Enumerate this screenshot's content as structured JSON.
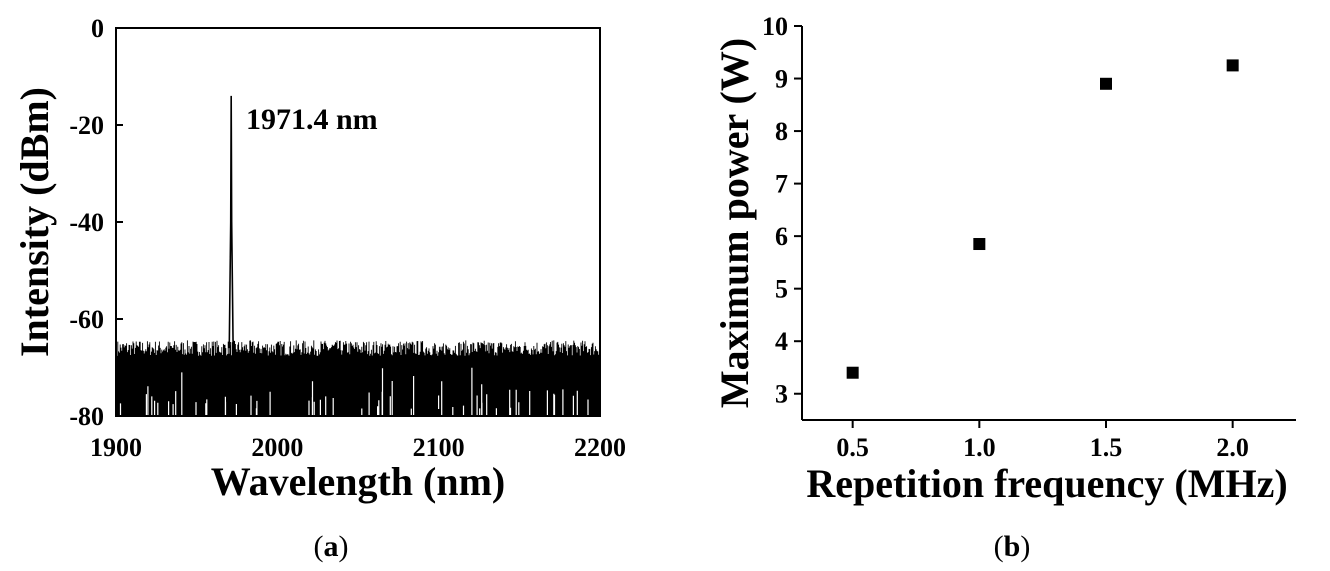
{
  "chart_data": [
    {
      "type": "line",
      "panel": "a",
      "xlabel": "Wavelength (nm)",
      "ylabel": "Intensity (dBm)",
      "xlim": [
        1900,
        2200
      ],
      "ylim": [
        -80,
        0
      ],
      "xticks": [
        1900,
        2000,
        2100,
        2200
      ],
      "yticks": [
        0,
        -20,
        -40,
        -60,
        -80
      ],
      "peak": {
        "x": 1971.4,
        "y": -14
      },
      "noise_floor": {
        "mean": -66,
        "min": -80
      },
      "annotations": [
        {
          "text": "1971.4 nm",
          "x": 1971.4,
          "y": -14
        }
      ]
    },
    {
      "type": "scatter",
      "panel": "b",
      "xlabel": "Repetition frequency (MHz)",
      "ylabel": "Maximum power (W)",
      "xlim": [
        0.3,
        2.25
      ],
      "ylim": [
        2.5,
        10
      ],
      "xticks": [
        "0.5",
        "1.0",
        "1.5",
        "2.0"
      ],
      "yticks": [
        3,
        4,
        5,
        6,
        7,
        8,
        9,
        10
      ],
      "x": [
        0.5,
        1.0,
        1.5,
        2.0
      ],
      "y": [
        3.4,
        5.85,
        8.9,
        9.25
      ]
    }
  ],
  "captions": {
    "a": {
      "open": "(",
      "letter": "a",
      "close": ")"
    },
    "b": {
      "open": "(",
      "letter": "b",
      "close": ")"
    }
  }
}
